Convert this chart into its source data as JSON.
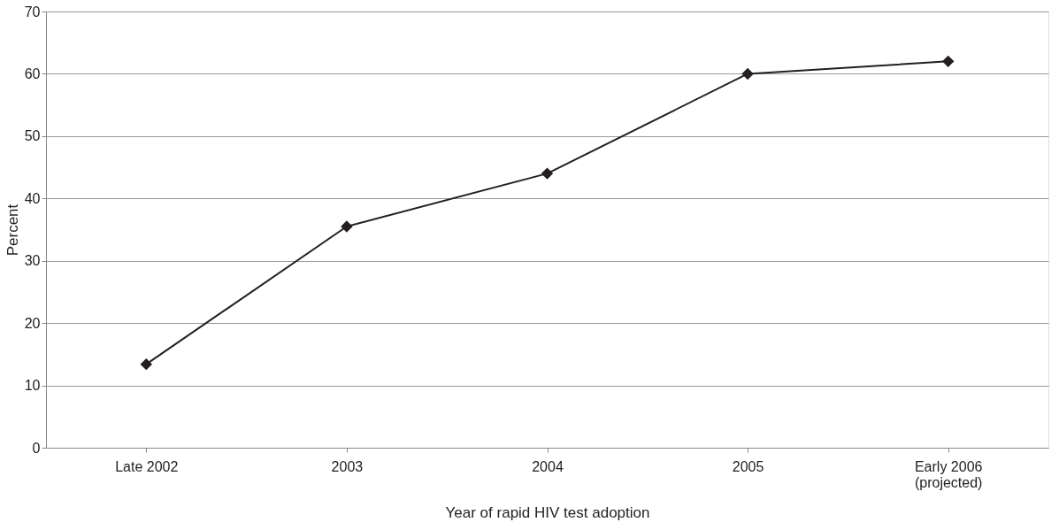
{
  "chart_data": {
    "type": "line",
    "xlabel": "Year of rapid HIV test adoption",
    "ylabel": "Percent",
    "categories": [
      "Late 2002",
      "2003",
      "2004",
      "2005",
      "Early 2006\n(projected)"
    ],
    "series": [
      {
        "color": "#231f20",
        "values": [
          13.4,
          35.5,
          44,
          60,
          62
        ]
      }
    ],
    "ylim": [
      0,
      70
    ],
    "yticks": [
      0,
      10,
      20,
      30,
      40,
      50,
      60,
      70
    ],
    "grid": "y",
    "marker": "diamond",
    "line_style": "solid",
    "legend": false
  }
}
